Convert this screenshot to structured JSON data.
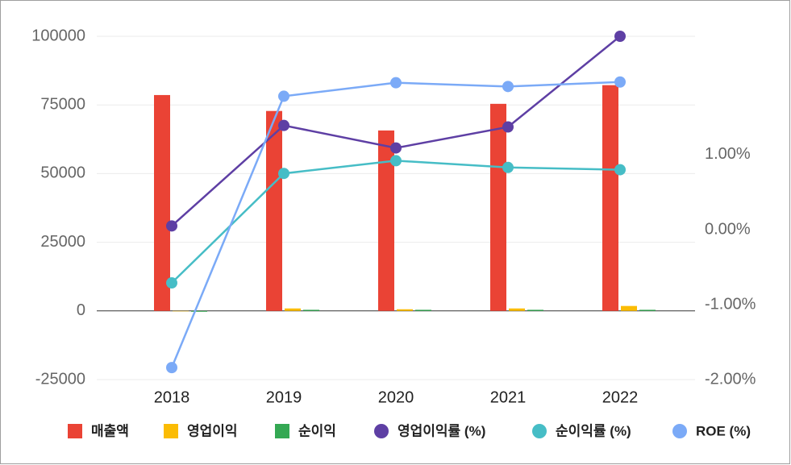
{
  "chart_data": {
    "type": "bar-line",
    "categories": [
      "2018",
      "2019",
      "2020",
      "2021",
      "2022"
    ],
    "series": [
      {
        "name": "매출액",
        "color": "#ea4335",
        "type": "bar",
        "values": [
          78600,
          72800,
          65700,
          75400,
          82200
        ]
      },
      {
        "name": "영업이익",
        "color": "#fbbc04",
        "type": "bar",
        "values": [
          0,
          900,
          600,
          900,
          1800
        ]
      },
      {
        "name": "순이익",
        "color": "#34a853",
        "type": "bar",
        "values": [
          -300,
          400,
          400,
          400,
          400
        ]
      },
      {
        "name": "영업이익률 (%)",
        "color": "#5e3fa4",
        "type": "line",
        "axis": "y2",
        "values": [
          0.05,
          1.39,
          1.09,
          1.37,
          2.58
        ]
      },
      {
        "name": "순이익률 (%)",
        "color": "#46bdc6",
        "type": "line",
        "axis": "y2",
        "values": [
          -0.71,
          0.75,
          0.92,
          0.83,
          0.8
        ]
      },
      {
        "name": "ROE (%)",
        "color": "#7baaf7",
        "type": "line",
        "axis": "y2",
        "values": [
          -1.84,
          1.78,
          1.96,
          1.91,
          1.97
        ]
      }
    ],
    "ylim": [
      -25000,
      100000
    ],
    "yticks": [
      -25000,
      0,
      25000,
      50000,
      75000,
      100000
    ],
    "y2lim": [
      -2,
      2.58
    ],
    "y2ticks": [
      {
        "value": -2,
        "label": "-2.00%"
      },
      {
        "value": -1,
        "label": "-1.00%"
      },
      {
        "value": 0,
        "label": "0.00%"
      },
      {
        "value": 1,
        "label": "1.00%"
      }
    ],
    "grid": true,
    "legend": "bottom"
  }
}
